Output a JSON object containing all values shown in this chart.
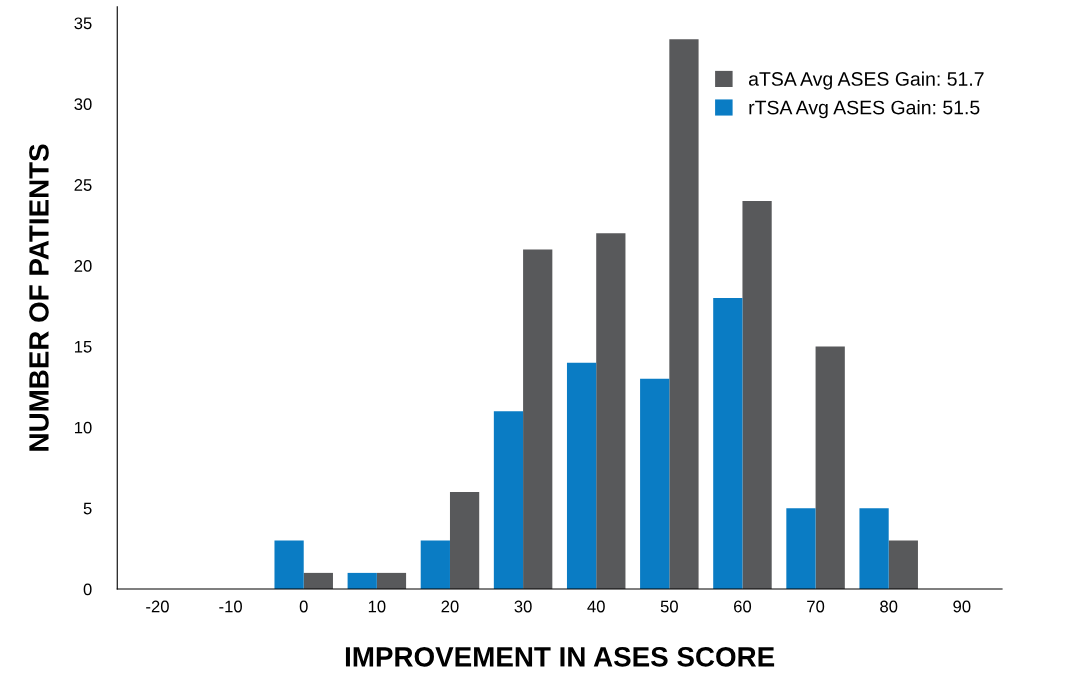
{
  "chart_data": {
    "type": "bar",
    "xlabel": "IMPROVEMENT IN ASES SCORE",
    "ylabel": "NUMBER OF PATIENTS",
    "categories": [
      "-20",
      "-10",
      "0",
      "10",
      "20",
      "30",
      "40",
      "50",
      "60",
      "70",
      "80",
      "90"
    ],
    "series": [
      {
        "name": "aTSA Avg ASES Gain: 51.7",
        "color": "#58595b",
        "values": [
          0,
          0,
          1,
          1,
          6,
          21,
          22,
          34,
          24,
          15,
          3,
          0
        ]
      },
      {
        "name": "rTSA Avg ASES Gain: 51.5",
        "color": "#0a7cc4",
        "values": [
          0,
          0,
          3,
          1,
          3,
          11,
          14,
          13,
          18,
          5,
          5,
          0
        ]
      }
    ],
    "ylim": [
      0,
      36
    ],
    "yticks": [
      0,
      5,
      10,
      15,
      20,
      25,
      30,
      35
    ],
    "grid": false,
    "legend": "top right"
  }
}
